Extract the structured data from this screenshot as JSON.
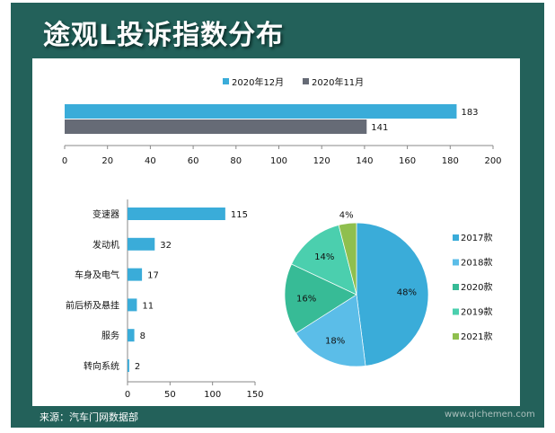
{
  "title": "途观L投诉指数分布",
  "source": "来源：汽车门网数据部",
  "watermark": "www.qichemen.com",
  "chart_data": [
    {
      "type": "bar",
      "orientation": "horizontal",
      "legend_position": "top",
      "series": [
        {
          "name": "2020年12月",
          "color": "#3aacd9",
          "values": [
            183
          ]
        },
        {
          "name": "2020年11月",
          "color": "#666b76",
          "values": [
            141
          ]
        }
      ],
      "xlim": [
        0,
        200
      ],
      "xticks": [
        0,
        20,
        40,
        60,
        80,
        100,
        120,
        140,
        160,
        180,
        200
      ]
    },
    {
      "type": "bar",
      "orientation": "horizontal",
      "color": "#3aacd9",
      "categories": [
        "变速器",
        "发动机",
        "车身及电气",
        "前后桥及悬挂",
        "服务",
        "转向系统"
      ],
      "values": [
        115,
        32,
        17,
        11,
        8,
        2
      ],
      "xlim": [
        0,
        150
      ],
      "xticks": [
        0,
        50,
        100,
        150
      ]
    },
    {
      "type": "pie",
      "legend_position": "right",
      "labels": [
        "2017款",
        "2018款",
        "2020款",
        "2019款",
        "2021款"
      ],
      "values": [
        48,
        18,
        16,
        14,
        4
      ],
      "colors": [
        "#3aacd9",
        "#5bbde8",
        "#37bb96",
        "#4bcfae",
        "#8fbf4e"
      ],
      "data_labels": [
        "48%",
        "18%",
        "16%",
        "14%",
        "4%"
      ]
    }
  ]
}
